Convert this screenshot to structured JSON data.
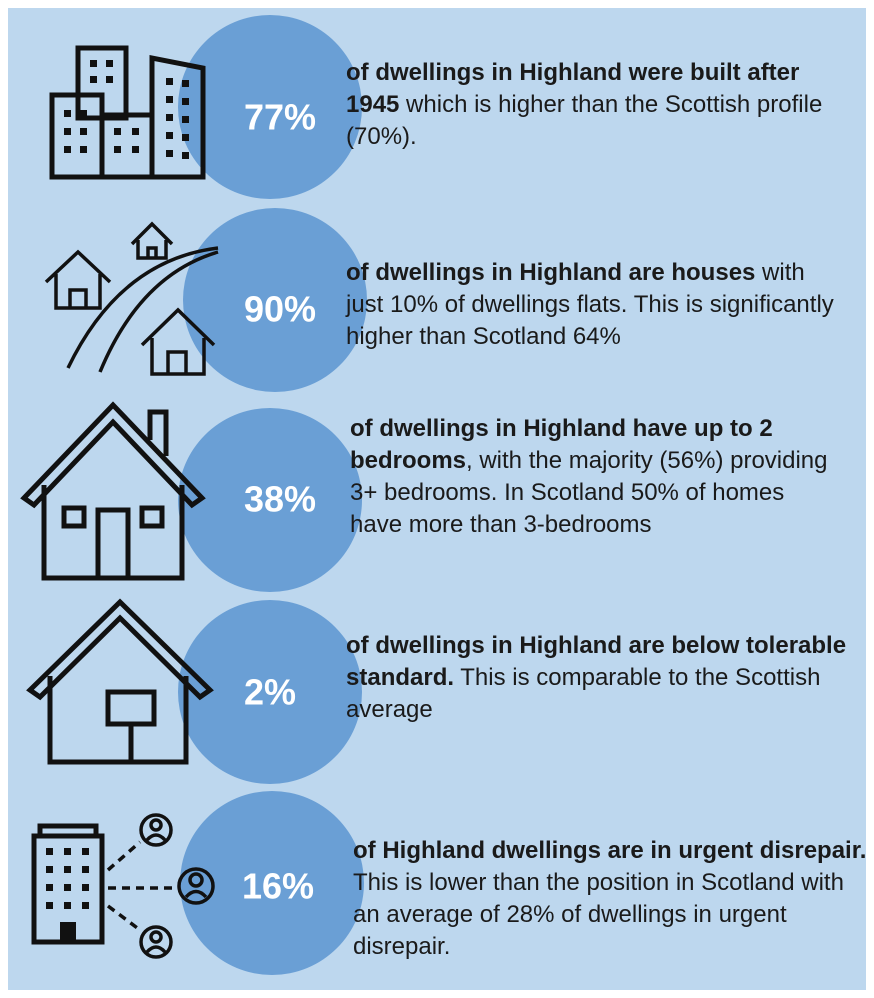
{
  "items": [
    {
      "percent": "77%",
      "bold": "of dwellings in Highland were built after 1945",
      "text": " which is higher than  the Scottish profile (70%)."
    },
    {
      "percent": "90%",
      "bold": "of dwellings in Highland are houses",
      "text": " with just 10% of dwellings flats. This is significantly higher than Scotland 64%"
    },
    {
      "percent": "38%",
      "bold": "of dwellings in Highland have up to 2 bedrooms",
      "text": ", with the majority (56%) providing 3+ bedrooms. In Scotland 50% of homes have more than 3-bedrooms"
    },
    {
      "percent": "2%",
      "bold": "of dwellings in Highland are below tolerable standard.",
      "text": " This is comparable to the Scottish average"
    },
    {
      "percent": "16%",
      "bold": "of Highland dwellings are in urgent disrepair.",
      "text": " This is lower than the position in Scotland with an average of 28% of dwellings in urgent disrepair."
    }
  ]
}
